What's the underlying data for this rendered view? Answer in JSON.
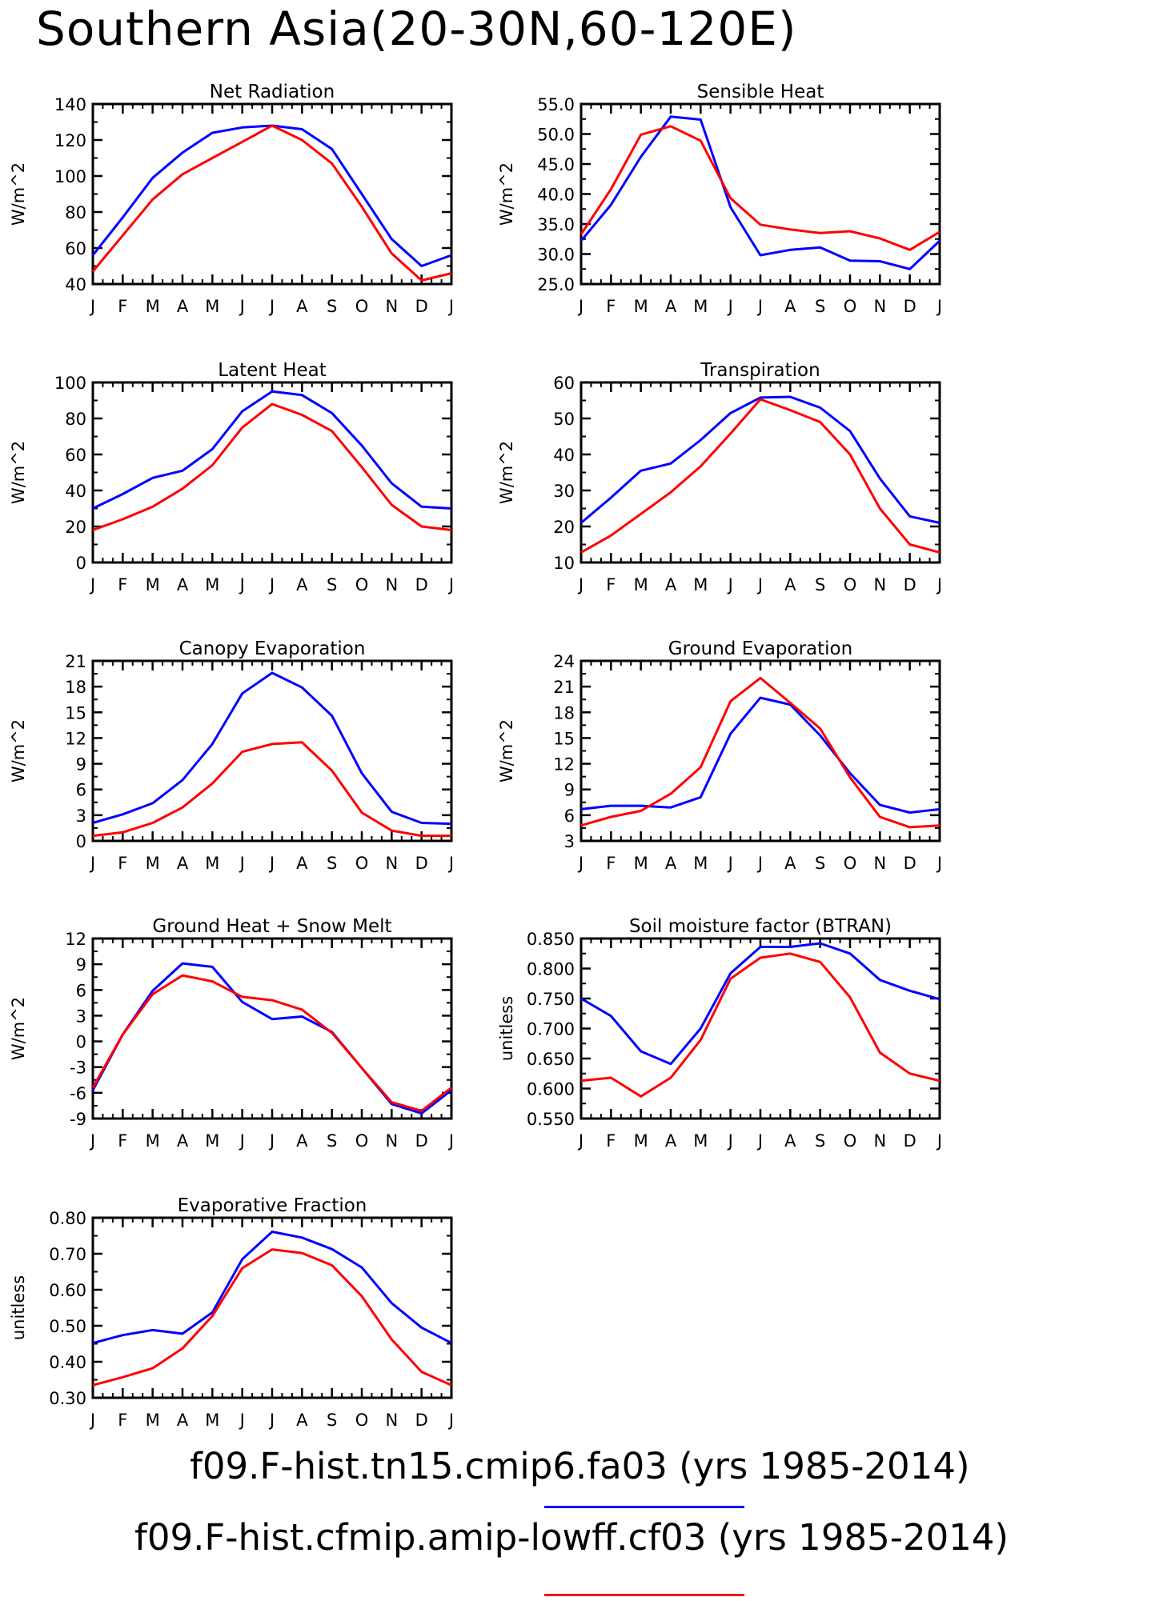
{
  "page": {
    "title": "Southern Asia(20-30N,60-120E)"
  },
  "legend": {
    "entries": [
      {
        "label": "f09.F-hist.tn15.cmip6.fa03 (yrs 1985-2014)",
        "color": "#0000ff"
      },
      {
        "label": "f09.F-hist.cfmip.amip-lowff.cf03 (yrs 1985-2014)",
        "color": "#ff0000"
      }
    ]
  },
  "chart_data": [
    {
      "type": "line",
      "title": "Net Radiation",
      "ylabel": "W/m^2",
      "x": [
        "J",
        "F",
        "M",
        "A",
        "M",
        "J",
        "J",
        "A",
        "S",
        "O",
        "N",
        "D",
        "J"
      ],
      "ylim": [
        40,
        140
      ],
      "yticks": [
        40,
        60,
        80,
        100,
        120,
        140
      ],
      "ytick_decimals": 0,
      "series": [
        {
          "color": "#0000ff",
          "values": [
            56,
            77,
            99,
            113,
            124,
            127,
            128,
            126,
            115,
            90,
            65,
            50,
            56
          ]
        },
        {
          "color": "#ff0000",
          "values": [
            47,
            67,
            87,
            101,
            110,
            119,
            128,
            120,
            107,
            83,
            57,
            42,
            46
          ]
        }
      ]
    },
    {
      "type": "line",
      "title": "Sensible Heat",
      "ylabel": "W/m^2",
      "x": [
        "J",
        "F",
        "M",
        "A",
        "M",
        "J",
        "J",
        "A",
        "S",
        "O",
        "N",
        "D",
        "J"
      ],
      "ylim": [
        25,
        55
      ],
      "yticks": [
        25,
        30,
        35,
        40,
        45,
        50,
        55
      ],
      "ytick_decimals": 1,
      "series": [
        {
          "color": "#0000ff",
          "values": [
            32.2,
            38.2,
            46.2,
            52.9,
            52.4,
            37.8,
            29.8,
            30.7,
            31.1,
            28.9,
            28.8,
            27.5,
            32.2
          ]
        },
        {
          "color": "#ff0000",
          "values": [
            33.3,
            40.8,
            49.9,
            51.3,
            48.9,
            39.3,
            34.9,
            34.1,
            33.5,
            33.8,
            32.6,
            30.7,
            33.7
          ]
        }
      ]
    },
    {
      "type": "line",
      "title": "Latent Heat",
      "ylabel": "W/m^2",
      "x": [
        "J",
        "F",
        "M",
        "A",
        "M",
        "J",
        "J",
        "A",
        "S",
        "O",
        "N",
        "D",
        "J"
      ],
      "ylim": [
        0,
        100
      ],
      "yticks": [
        0,
        20,
        40,
        60,
        80,
        100
      ],
      "ytick_decimals": 0,
      "series": [
        {
          "color": "#0000ff",
          "values": [
            30,
            38,
            47,
            51,
            63,
            84,
            95,
            93,
            83,
            65,
            44,
            31,
            30
          ]
        },
        {
          "color": "#ff0000",
          "values": [
            18,
            24,
            31,
            41,
            54,
            75,
            88,
            82,
            73,
            53,
            32,
            20,
            18
          ]
        }
      ]
    },
    {
      "type": "line",
      "title": "Transpiration",
      "ylabel": "W/m^2",
      "x": [
        "J",
        "F",
        "M",
        "A",
        "M",
        "J",
        "J",
        "A",
        "S",
        "O",
        "N",
        "D",
        "J"
      ],
      "ylim": [
        10,
        60
      ],
      "yticks": [
        10,
        20,
        30,
        40,
        50,
        60
      ],
      "ytick_decimals": 0,
      "series": [
        {
          "color": "#0000ff",
          "values": [
            21,
            28,
            35.5,
            37.5,
            44,
            51.5,
            55.8,
            56,
            53,
            46.5,
            33.3,
            22.8,
            21
          ]
        },
        {
          "color": "#ff0000",
          "values": [
            12.8,
            17.5,
            23.5,
            29.5,
            36.7,
            45.8,
            55.3,
            52.3,
            49,
            40,
            25,
            15,
            12.8
          ]
        }
      ]
    },
    {
      "type": "line",
      "title": "Canopy Evaporation",
      "ylabel": "W/m^2",
      "x": [
        "J",
        "F",
        "M",
        "A",
        "M",
        "J",
        "J",
        "A",
        "S",
        "O",
        "N",
        "D",
        "J"
      ],
      "ylim": [
        0,
        21
      ],
      "yticks": [
        0,
        3,
        6,
        9,
        12,
        15,
        18,
        21
      ],
      "ytick_decimals": 0,
      "series": [
        {
          "color": "#0000ff",
          "values": [
            2.1,
            3.1,
            4.4,
            7.1,
            11.3,
            17.2,
            19.6,
            17.9,
            14.6,
            7.9,
            3.4,
            2.1,
            2.0
          ]
        },
        {
          "color": "#ff0000",
          "values": [
            0.6,
            1.0,
            2.1,
            3.9,
            6.7,
            10.4,
            11.3,
            11.5,
            8.2,
            3.3,
            1.2,
            0.6,
            0.6
          ]
        }
      ]
    },
    {
      "type": "line",
      "title": "Ground Evaporation",
      "ylabel": "W/m^2",
      "x": [
        "J",
        "F",
        "M",
        "A",
        "M",
        "J",
        "J",
        "A",
        "S",
        "O",
        "N",
        "D",
        "J"
      ],
      "ylim": [
        3,
        24
      ],
      "yticks": [
        3,
        6,
        9,
        12,
        15,
        18,
        21,
        24
      ],
      "ytick_decimals": 0,
      "series": [
        {
          "color": "#0000ff",
          "values": [
            6.7,
            7.1,
            7.1,
            6.9,
            8.1,
            15.5,
            19.7,
            18.9,
            15.3,
            10.9,
            7.2,
            6.3,
            6.7
          ]
        },
        {
          "color": "#ff0000",
          "values": [
            4.8,
            5.8,
            6.5,
            8.5,
            11.6,
            19.3,
            22.0,
            19.1,
            16.1,
            10.4,
            5.8,
            4.6,
            4.8
          ]
        }
      ]
    },
    {
      "type": "line",
      "title": "Ground Heat + Snow Melt",
      "ylabel": "W/m^2",
      "x": [
        "J",
        "F",
        "M",
        "A",
        "M",
        "J",
        "J",
        "A",
        "S",
        "O",
        "N",
        "D",
        "J"
      ],
      "ylim": [
        -9,
        12
      ],
      "yticks": [
        -9,
        -6,
        -3,
        0,
        3,
        6,
        9,
        12
      ],
      "ytick_decimals": 0,
      "series": [
        {
          "color": "#0000ff",
          "values": [
            -5.7,
            0.8,
            5.9,
            9.1,
            8.7,
            4.6,
            2.6,
            2.9,
            1.1,
            -3.1,
            -7.3,
            -8.4,
            -5.7
          ]
        },
        {
          "color": "#ff0000",
          "values": [
            -5.4,
            0.8,
            5.5,
            7.7,
            7.0,
            5.2,
            4.8,
            3.7,
            1.0,
            -3.1,
            -7.1,
            -8.1,
            -5.4
          ]
        }
      ]
    },
    {
      "type": "line",
      "title": "Soil moisture factor (BTRAN)",
      "ylabel": "unitless",
      "x": [
        "J",
        "F",
        "M",
        "A",
        "M",
        "J",
        "J",
        "A",
        "S",
        "O",
        "N",
        "D",
        "J"
      ],
      "ylim": [
        0.55,
        0.85
      ],
      "yticks": [
        0.55,
        0.6,
        0.65,
        0.7,
        0.75,
        0.8,
        0.85
      ],
      "ytick_decimals": 3,
      "series": [
        {
          "color": "#0000ff",
          "values": [
            0.75,
            0.721,
            0.662,
            0.641,
            0.7,
            0.792,
            0.836,
            0.836,
            0.842,
            0.825,
            0.781,
            0.763,
            0.749
          ]
        },
        {
          "color": "#ff0000",
          "values": [
            0.613,
            0.618,
            0.587,
            0.618,
            0.681,
            0.783,
            0.818,
            0.825,
            0.811,
            0.752,
            0.66,
            0.625,
            0.613
          ]
        }
      ]
    },
    {
      "type": "line",
      "title": "Evaporative Fraction",
      "ylabel": "unitless",
      "x": [
        "J",
        "F",
        "M",
        "A",
        "M",
        "J",
        "J",
        "A",
        "S",
        "O",
        "N",
        "D",
        "J"
      ],
      "ylim": [
        0.3,
        0.8
      ],
      "yticks": [
        0.3,
        0.4,
        0.5,
        0.6,
        0.7,
        0.8
      ],
      "ytick_decimals": 2,
      "series": [
        {
          "color": "#0000ff",
          "values": [
            0.452,
            0.474,
            0.488,
            0.478,
            0.537,
            0.685,
            0.761,
            0.745,
            0.713,
            0.662,
            0.563,
            0.495,
            0.452
          ]
        },
        {
          "color": "#ff0000",
          "values": [
            0.335,
            0.357,
            0.382,
            0.437,
            0.527,
            0.66,
            0.712,
            0.702,
            0.668,
            0.582,
            0.462,
            0.372,
            0.335
          ]
        }
      ]
    }
  ]
}
